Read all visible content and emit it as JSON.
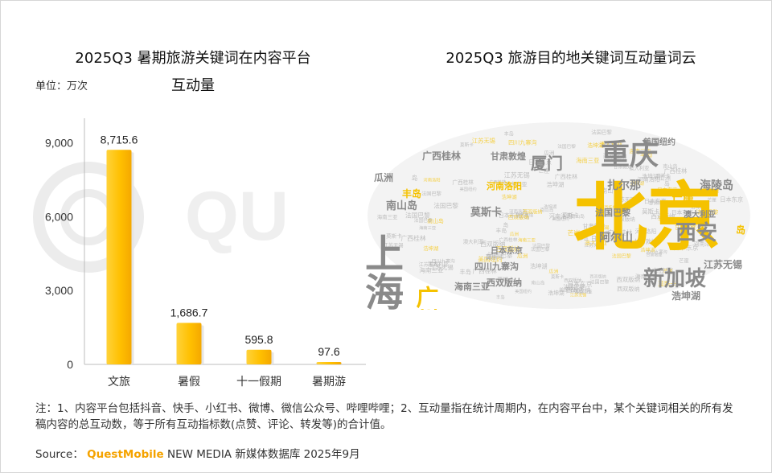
{
  "left_chart": {
    "title_line1": "2025Q3 暑期旅游关键词在内容平台",
    "title_line2": "互动量",
    "unit_label": "单位：万次"
  },
  "right_chart": {
    "title": "2025Q3 旅游目的地关键词互动量词云"
  },
  "chart_data": [
    {
      "type": "bar",
      "categories": [
        "文旅",
        "暑假",
        "十一假期",
        "暑期游"
      ],
      "values": [
        8715.6,
        1686.7,
        595.8,
        97.6
      ],
      "value_labels": [
        "8,715.6",
        "1,686.7",
        "595.8",
        "97.6"
      ],
      "y_ticks": [
        "0",
        "3,000",
        "6,000",
        "9,000"
      ],
      "y_tick_values": [
        0,
        3000,
        6000,
        9000
      ],
      "ylim": [
        0,
        10000
      ],
      "grid": false,
      "bar_color": "#ffc000"
    }
  ],
  "wordcloud": {
    "words": [
      "北京",
      "上海",
      "重庆",
      "西安",
      "新加坡",
      "厦门",
      "广州",
      "海陵岛",
      "扎尔那",
      "阿尔山",
      "南山岛",
      "莫斯卡",
      "法国巴黎",
      "江苏无锡",
      "浩坤湖",
      "西双版纳",
      "广西桂林",
      "甘肃敦煌",
      "河南洛阳",
      "瓜洲",
      "丰岛",
      "美国纽约",
      "海南三亚",
      "四川九寨沟",
      "澳大利亚",
      "日本东京",
      "芒崖",
      "岛"
    ],
    "colors": {
      "gray": "#8a8a8a",
      "yellow": "#f5c200"
    }
  },
  "notes": "注：1、内容平台包括抖音、快手、小红书、微博、微信公众号、哔哩哔哩；2、互动量指在统计周期内，在内容平台中，某个关键词相关的所有发稿内容的总互动数，等于所有互动指标数(点赞、评论、转发等)的合计值。",
  "source": {
    "prefix": "Source：",
    "brand": "QuestMobile",
    "suffix": "NEW MEDIA 新媒体数据库 2025年9月"
  }
}
